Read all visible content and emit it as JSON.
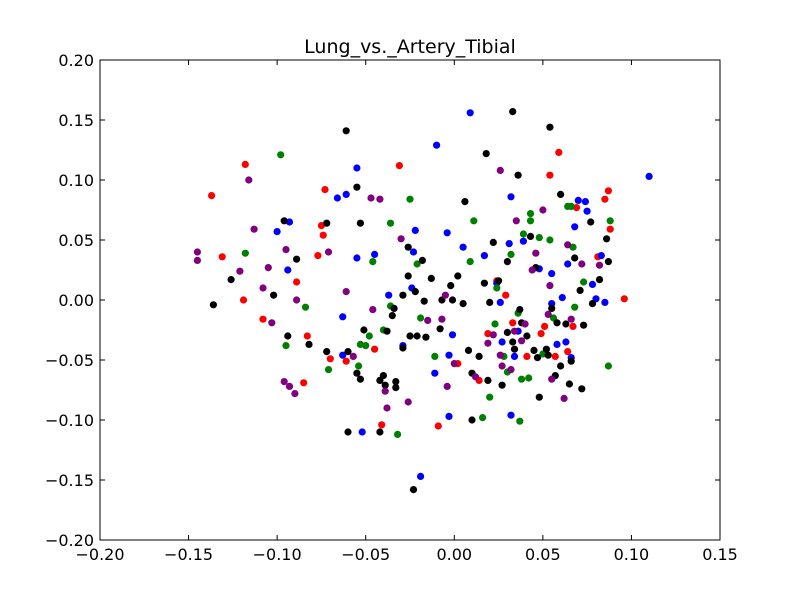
{
  "chart_data": {
    "type": "scatter",
    "title": "Lung_vs._Artery_Tibial",
    "xlabel": "",
    "ylabel": "",
    "xlim": [
      -0.2,
      0.15
    ],
    "ylim": [
      -0.2,
      0.2
    ],
    "xticks": [
      "−0.20",
      "−0.15",
      "−0.10",
      "−0.05",
      "0.00",
      "0.05",
      "0.10",
      "0.15"
    ],
    "yticks": [
      "−0.20",
      "−0.15",
      "−0.10",
      "−0.05",
      "0.00",
      "0.05",
      "0.10",
      "0.15",
      "0.20"
    ],
    "xtick_values": [
      -0.2,
      -0.15,
      -0.1,
      -0.05,
      0.0,
      0.05,
      0.1,
      0.15
    ],
    "ytick_values": [
      -0.2,
      -0.15,
      -0.1,
      -0.05,
      0.0,
      0.05,
      0.1,
      0.15,
      0.2
    ],
    "grid": false,
    "series": [
      {
        "color": "#ff0000",
        "points": [
          [
            -0.137,
            0.087
          ],
          [
            -0.118,
            0.113
          ],
          [
            -0.131,
            0.036
          ],
          [
            -0.119,
            0.0
          ],
          [
            -0.108,
            -0.016
          ],
          [
            -0.089,
            0.015
          ],
          [
            -0.085,
            -0.069
          ],
          [
            -0.083,
            -0.03
          ],
          [
            -0.073,
            0.092
          ],
          [
            -0.075,
            0.062
          ],
          [
            -0.074,
            0.054
          ],
          [
            -0.077,
            0.037
          ],
          [
            -0.061,
            -0.051
          ],
          [
            -0.045,
            -0.041
          ],
          [
            -0.041,
            -0.104
          ],
          [
            -0.031,
            0.112
          ],
          [
            -0.009,
            -0.105
          ],
          [
            0.002,
            -0.053
          ],
          [
            0.014,
            -0.067
          ],
          [
            0.024,
            0.016
          ],
          [
            0.029,
            0.004
          ],
          [
            0.033,
            -0.019
          ],
          [
            0.041,
            -0.047
          ],
          [
            0.049,
            -0.028
          ],
          [
            0.051,
            -0.022
          ],
          [
            0.054,
            0.104
          ],
          [
            0.057,
            -0.047
          ],
          [
            0.059,
            0.123
          ],
          [
            0.064,
            -0.043
          ],
          [
            0.067,
            -0.022
          ],
          [
            0.069,
            0.077
          ],
          [
            0.081,
            0.036
          ],
          [
            0.085,
            0.084
          ],
          [
            0.087,
            0.091
          ],
          [
            0.088,
            0.059
          ],
          [
            0.096,
            0.001
          ],
          [
            0.019,
            -0.028
          ],
          [
            -0.07,
            -0.049
          ]
        ]
      },
      {
        "color": "#0000ff",
        "points": [
          [
            0.009,
            0.156
          ],
          [
            -0.01,
            0.129
          ],
          [
            0.11,
            0.103
          ],
          [
            -0.055,
            0.11
          ],
          [
            -0.061,
            0.088
          ],
          [
            -0.066,
            0.085
          ],
          [
            -0.1,
            0.057
          ],
          [
            -0.093,
            0.065
          ],
          [
            -0.094,
            0.025
          ],
          [
            -0.055,
            0.035
          ],
          [
            -0.045,
            0.038
          ],
          [
            -0.037,
            0.004
          ],
          [
            -0.022,
            0.058
          ],
          [
            -0.023,
            0.04
          ],
          [
            -0.024,
            0.01
          ],
          [
            -0.004,
            0.056
          ],
          [
            0.005,
            0.044
          ],
          [
            0.024,
            0.014
          ],
          [
            0.026,
            -0.002
          ],
          [
            0.031,
            0.047
          ],
          [
            0.032,
            0.086
          ],
          [
            0.034,
            -0.047
          ],
          [
            0.039,
            0.049
          ],
          [
            0.055,
            -0.003
          ],
          [
            0.061,
            0.002
          ],
          [
            0.064,
            0.03
          ],
          [
            0.068,
            0.061
          ],
          [
            0.07,
            0.083
          ],
          [
            0.074,
            0.082
          ],
          [
            0.075,
            0.074
          ],
          [
            0.078,
            0.013
          ],
          [
            0.083,
            0.037
          ],
          [
            -0.003,
            -0.046
          ],
          [
            -0.011,
            -0.061
          ],
          [
            -0.001,
            -0.029
          ],
          [
            -0.029,
            -0.038
          ],
          [
            -0.063,
            -0.014
          ],
          [
            -0.063,
            -0.046
          ],
          [
            -0.052,
            -0.11
          ],
          [
            -0.003,
            -0.097
          ],
          [
            -0.019,
            -0.147
          ],
          [
            0.017,
            0.037
          ],
          [
            0.027,
            -0.035
          ],
          [
            0.036,
            -0.026
          ],
          [
            0.048,
            0.026
          ],
          [
            0.055,
            0.022
          ],
          [
            0.058,
            -0.037
          ],
          [
            0.063,
            -0.035
          ],
          [
            0.066,
            -0.048
          ],
          [
            0.032,
            -0.096
          ],
          [
            0.08,
            0.001
          ],
          [
            0.085,
            -0.002
          ]
        ]
      },
      {
        "color": "#008000",
        "points": [
          [
            -0.098,
            0.121
          ],
          [
            -0.118,
            0.039
          ],
          [
            -0.095,
            -0.038
          ],
          [
            -0.084,
            -0.006
          ],
          [
            -0.071,
            -0.058
          ],
          [
            -0.054,
            -0.055
          ],
          [
            -0.053,
            -0.037
          ],
          [
            -0.05,
            -0.038
          ],
          [
            -0.048,
            -0.03
          ],
          [
            -0.046,
            0.032
          ],
          [
            -0.04,
            -0.025
          ],
          [
            -0.036,
            -0.005
          ],
          [
            -0.036,
            0.064
          ],
          [
            -0.032,
            -0.112
          ],
          [
            -0.025,
            0.084
          ],
          [
            -0.021,
            0.03
          ],
          [
            -0.019,
            -0.015
          ],
          [
            -0.011,
            -0.047
          ],
          [
            0.009,
            0.032
          ],
          [
            0.011,
            0.066
          ],
          [
            0.016,
            -0.098
          ],
          [
            0.02,
            -0.081
          ],
          [
            0.023,
            -0.02
          ],
          [
            0.024,
            0.01
          ],
          [
            0.03,
            -0.06
          ],
          [
            0.032,
            0.038
          ],
          [
            0.036,
            -0.011
          ],
          [
            0.037,
            -0.101
          ],
          [
            0.038,
            -0.066
          ],
          [
            0.039,
            0.055
          ],
          [
            0.042,
            -0.065
          ],
          [
            0.043,
            0.066
          ],
          [
            0.043,
            0.072
          ],
          [
            0.048,
            0.052
          ],
          [
            0.05,
            -0.045
          ],
          [
            0.054,
            0.05
          ],
          [
            0.056,
            -0.015
          ],
          [
            0.064,
            0.078
          ],
          [
            0.066,
            0.078
          ],
          [
            0.067,
            0.044
          ],
          [
            0.068,
            -0.006
          ],
          [
            0.088,
            0.066
          ],
          [
            0.087,
            -0.055
          ],
          [
            0.073,
            0.015
          ],
          [
            0.028,
            -0.047
          ]
        ]
      },
      {
        "color": "#000000",
        "points": [
          [
            0.033,
            0.157
          ],
          [
            0.054,
            0.144
          ],
          [
            -0.061,
            0.141
          ],
          [
            0.018,
            0.122
          ],
          [
            -0.055,
            0.094
          ],
          [
            0.006,
            0.082
          ],
          [
            0.06,
            0.088
          ],
          [
            0.036,
            0.104
          ],
          [
            -0.096,
            0.066
          ],
          [
            -0.072,
            0.064
          ],
          [
            -0.053,
            0.064
          ],
          [
            -0.089,
            0.034
          ],
          [
            -0.136,
            -0.004
          ],
          [
            -0.126,
            0.017
          ],
          [
            -0.102,
            0.004
          ],
          [
            -0.094,
            -0.03
          ],
          [
            -0.082,
            -0.037
          ],
          [
            -0.072,
            -0.043
          ],
          [
            -0.06,
            -0.043
          ],
          [
            -0.055,
            -0.061
          ],
          [
            -0.053,
            -0.066
          ],
          [
            -0.051,
            -0.025
          ],
          [
            -0.042,
            -0.067
          ],
          [
            -0.04,
            -0.063
          ],
          [
            -0.039,
            -0.071
          ],
          [
            -0.038,
            -0.026
          ],
          [
            -0.034,
            -0.007
          ],
          [
            -0.035,
            -0.013
          ],
          [
            -0.033,
            -0.073
          ],
          [
            -0.029,
            0.004
          ],
          [
            -0.026,
            0.02
          ],
          [
            -0.026,
            0.044
          ],
          [
            -0.025,
            -0.03
          ],
          [
            -0.022,
            0.007
          ],
          [
            -0.021,
            -0.03
          ],
          [
            -0.018,
            0.033
          ],
          [
            -0.017,
            -0.001
          ],
          [
            -0.016,
            -0.031
          ],
          [
            -0.013,
            0.018
          ],
          [
            -0.007,
            0.0
          ],
          [
            -0.002,
            0.012
          ],
          [
            -0.001,
            0.0
          ],
          [
            0.005,
            -0.003
          ],
          [
            0.008,
            -0.042
          ],
          [
            0.01,
            -0.061
          ],
          [
            0.017,
            0.014
          ],
          [
            0.02,
            -0.002
          ],
          [
            0.022,
            0.048
          ],
          [
            0.025,
            0.016
          ],
          [
            0.027,
            -0.071
          ],
          [
            0.03,
            0.032
          ],
          [
            0.033,
            -0.035
          ],
          [
            0.034,
            -0.041
          ],
          [
            0.037,
            -0.008
          ],
          [
            0.038,
            -0.019
          ],
          [
            0.041,
            -0.03
          ],
          [
            0.043,
            0.053
          ],
          [
            0.046,
            0.027
          ],
          [
            0.047,
            -0.048
          ],
          [
            0.048,
            -0.081
          ],
          [
            0.052,
            -0.041
          ],
          [
            0.053,
            -0.046
          ],
          [
            0.055,
            -0.007
          ],
          [
            0.057,
            -0.063
          ],
          [
            0.058,
            -0.019
          ],
          [
            0.06,
            -0.055
          ],
          [
            0.063,
            -0.02
          ],
          [
            0.065,
            -0.07
          ],
          [
            0.066,
            -0.051
          ],
          [
            0.068,
            0.035
          ],
          [
            0.071,
            0.008
          ],
          [
            0.072,
            -0.074
          ],
          [
            0.073,
            -0.021
          ],
          [
            0.077,
            0.065
          ],
          [
            0.078,
            -0.003
          ],
          [
            0.082,
            0.017
          ],
          [
            0.086,
            0.051
          ],
          [
            0.087,
            0.032
          ],
          [
            0.01,
            -0.1
          ],
          [
            -0.033,
            -0.068
          ],
          [
            -0.042,
            -0.11
          ],
          [
            -0.06,
            -0.11
          ],
          [
            -0.023,
            -0.158
          ],
          [
            0.019,
            -0.067
          ],
          [
            0.045,
            -0.042
          ],
          [
            0.03,
            -0.027
          ],
          [
            -0.008,
            -0.024
          ],
          [
            0.014,
            -0.047
          ],
          [
            -0.029,
            -0.04
          ],
          [
            0.002,
            0.02
          ]
        ]
      },
      {
        "color": "#800080",
        "points": [
          [
            -0.116,
            0.1
          ],
          [
            -0.145,
            0.04
          ],
          [
            -0.145,
            0.033
          ],
          [
            -0.113,
            0.059
          ],
          [
            -0.105,
            0.027
          ],
          [
            -0.121,
            0.024
          ],
          [
            -0.108,
            0.01
          ],
          [
            -0.103,
            -0.019
          ],
          [
            -0.095,
            0.042
          ],
          [
            -0.089,
            0.0
          ],
          [
            -0.096,
            -0.068
          ],
          [
            -0.093,
            -0.072
          ],
          [
            -0.09,
            -0.078
          ],
          [
            -0.071,
            0.04
          ],
          [
            -0.061,
            0.007
          ],
          [
            -0.057,
            -0.047
          ],
          [
            -0.047,
            0.085
          ],
          [
            -0.042,
            0.084
          ],
          [
            -0.046,
            -0.008
          ],
          [
            -0.039,
            -0.076
          ],
          [
            -0.038,
            -0.09
          ],
          [
            -0.03,
            0.051
          ],
          [
            -0.026,
            -0.085
          ],
          [
            -0.015,
            -0.017
          ],
          [
            -0.007,
            -0.016
          ],
          [
            -0.005,
            0.004
          ],
          [
            -0.004,
            -0.072
          ],
          [
            0.0,
            -0.053
          ],
          [
            0.012,
            -0.064
          ],
          [
            0.019,
            -0.036
          ],
          [
            0.022,
            -0.029
          ],
          [
            0.026,
            0.108
          ],
          [
            0.027,
            -0.055
          ],
          [
            0.032,
            -0.058
          ],
          [
            0.034,
            -0.026
          ],
          [
            0.035,
            0.066
          ],
          [
            0.04,
            -0.02
          ],
          [
            0.044,
            0.025
          ],
          [
            0.046,
            0.039
          ],
          [
            0.05,
            0.075
          ],
          [
            0.053,
            -0.012
          ],
          [
            0.054,
            0.012
          ],
          [
            0.055,
            -0.066
          ],
          [
            0.062,
            -0.082
          ],
          [
            0.064,
            0.046
          ],
          [
            0.066,
            -0.016
          ],
          [
            0.072,
            0.03
          ],
          [
            0.082,
            0.029
          ],
          [
            0.026,
            -0.046
          ],
          [
            0.038,
            -0.034
          ]
        ]
      }
    ]
  }
}
